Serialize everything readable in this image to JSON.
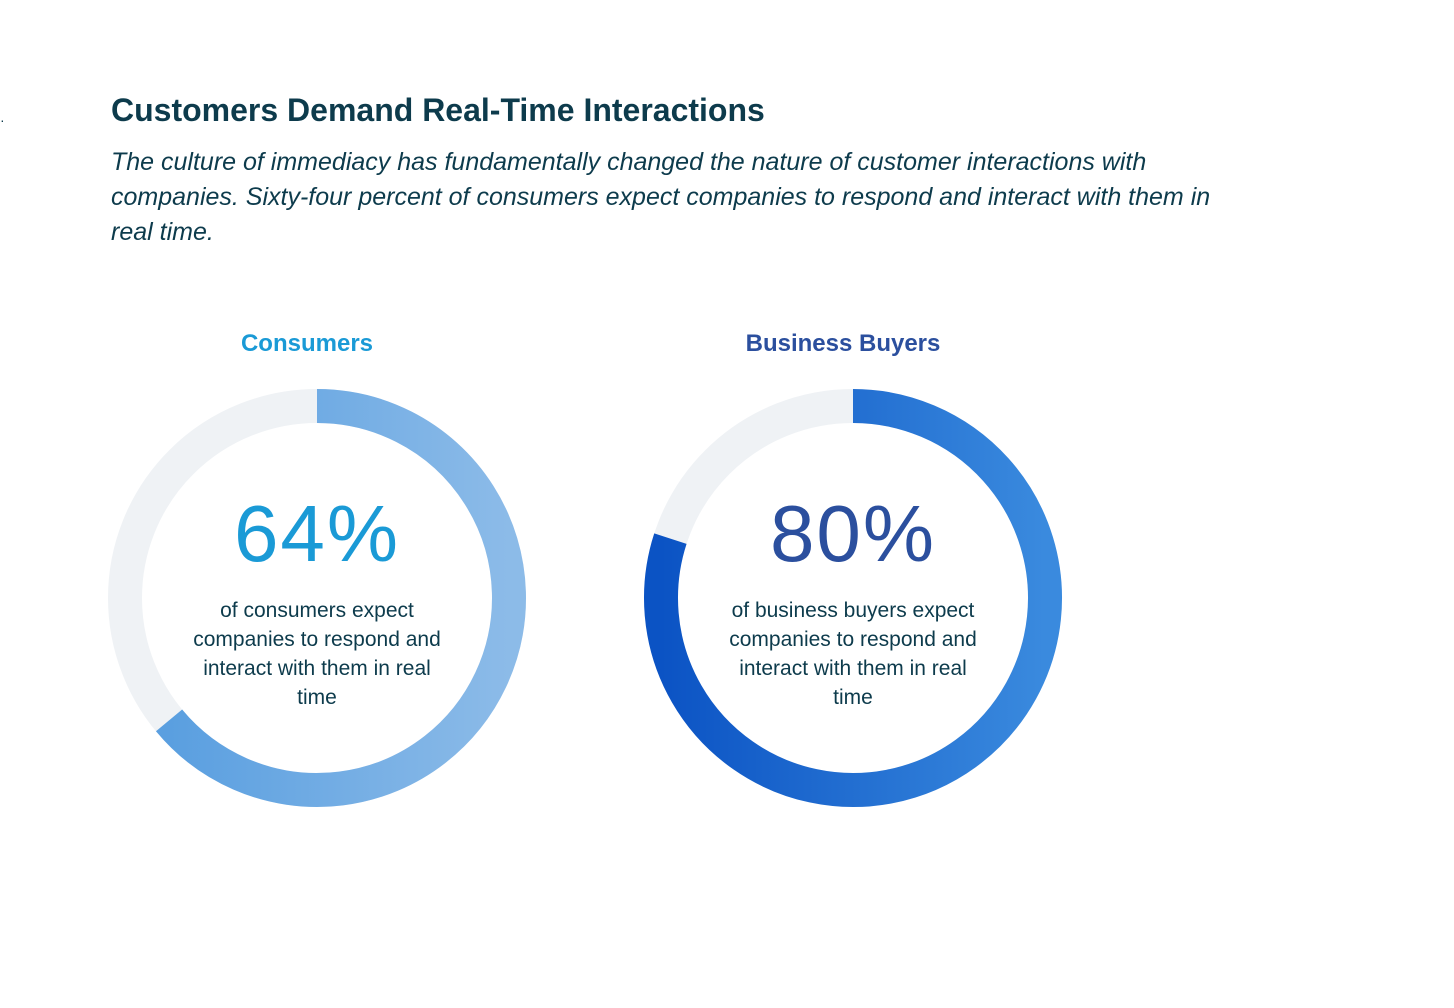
{
  "title": "Customers Demand Real-Time Interactions",
  "subtitle": "The culture of immediacy has fundamentally changed the nature of customer interactions with companies. Sixty-four percent of consumers expect companies to respond and interact with them in real time.",
  "colors": {
    "text_dark": "#0d3b4c",
    "track": "#eff2f5",
    "consumers_label": "#1a9ad6",
    "consumers_value": "#1a9ad6",
    "business_label": "#2b4f9e",
    "business_value": "#2b4f9e"
  },
  "chart_data": [
    {
      "type": "pie",
      "title": "Consumers",
      "value_label": "64%",
      "caption": "of consumers expect companies to respond and interact with them in real time",
      "values": [
        64,
        36
      ],
      "gradient": [
        "#5a9fe0",
        "#8cbbe8"
      ]
    },
    {
      "type": "pie",
      "title": "Business Buyers",
      "value_label": "80%",
      "caption": "of business buyers expect companies to respond and interact with them in real time",
      "values": [
        80,
        20
      ],
      "gradient": [
        "#0b53c4",
        "#3a8ade"
      ]
    }
  ]
}
